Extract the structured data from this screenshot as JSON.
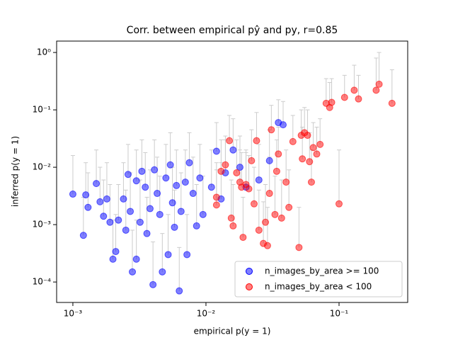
{
  "chart_data": {
    "type": "scatter",
    "title": "Corr. between empirical pŷ and py, r=0.85",
    "x_label": "empirical p(y = 1)",
    "y_label": "inferred p(y = 1)",
    "x_log": true,
    "y_log": true,
    "xlim": [
      0.000755,
      0.328
    ],
    "ylim": [
      4.4e-05,
      1.58
    ],
    "xticks": [
      {
        "value": 0.001,
        "label": "10⁻³"
      },
      {
        "value": 0.01,
        "label": "10⁻²"
      },
      {
        "value": 0.1,
        "label": "10⁻¹"
      }
    ],
    "yticks": [
      {
        "value": 0.0001,
        "label": "10⁻⁴"
      },
      {
        "value": 0.001,
        "label": "10⁻³"
      },
      {
        "value": 0.01,
        "label": "10⁻²"
      },
      {
        "value": 0.1,
        "label": "10⁻¹"
      },
      {
        "value": 1,
        "label": "10⁰"
      }
    ],
    "legend": "lower right",
    "error_color": "#cccccc",
    "series": [
      {
        "name": "n_images_by_area >= 100",
        "color": "#0000ff",
        "x": [
          0.001,
          0.0012,
          0.00125,
          0.0013,
          0.0015,
          0.0016,
          0.0017,
          0.0018,
          0.0019,
          0.002,
          0.0021,
          0.0022,
          0.0024,
          0.0025,
          0.0026,
          0.0027,
          0.0028,
          0.003,
          0.003,
          0.0032,
          0.0033,
          0.0035,
          0.0036,
          0.0038,
          0.004,
          0.0041,
          0.0043,
          0.0045,
          0.0047,
          0.005,
          0.0052,
          0.0054,
          0.0056,
          0.0058,
          0.006,
          0.0063,
          0.0065,
          0.007,
          0.0072,
          0.0075,
          0.008,
          0.0085,
          0.009,
          0.0095,
          0.011,
          0.012,
          0.013,
          0.014,
          0.016,
          0.018,
          0.02,
          0.025,
          0.03,
          0.035,
          0.038
        ],
        "values": [
          0.0034,
          0.00065,
          0.0033,
          0.002,
          0.0052,
          0.0025,
          0.0014,
          0.0028,
          0.0011,
          0.00025,
          0.00034,
          0.0012,
          0.0028,
          0.0008,
          0.0075,
          0.0017,
          0.00015,
          0.0058,
          0.00025,
          0.0011,
          0.0085,
          0.0045,
          0.0007,
          0.0019,
          9e-05,
          0.009,
          0.0035,
          0.0015,
          0.00015,
          0.0065,
          0.0003,
          0.011,
          0.0024,
          0.0009,
          0.0048,
          7e-05,
          0.0017,
          0.0055,
          0.0003,
          0.012,
          0.0035,
          0.00095,
          0.0065,
          0.0015,
          0.0045,
          0.019,
          0.0028,
          0.008,
          0.02,
          0.01,
          0.0045,
          0.006,
          0.013,
          0.06,
          0.055
        ],
        "upper": [
          0.016,
          0.003,
          0.012,
          0.008,
          0.02,
          0.01,
          0.006,
          0.012,
          0.005,
          0.0012,
          0.0015,
          0.005,
          0.012,
          0.004,
          0.025,
          0.008,
          0.0008,
          0.02,
          0.0012,
          0.006,
          0.03,
          0.018,
          0.003,
          0.009,
          0.0005,
          0.03,
          0.015,
          0.007,
          0.0007,
          0.025,
          0.0015,
          0.04,
          0.01,
          0.004,
          0.02,
          0.0004,
          0.008,
          0.02,
          0.0015,
          0.04,
          0.015,
          0.005,
          0.025,
          0.007,
          0.02,
          0.06,
          0.012,
          0.03,
          0.07,
          0.035,
          0.018,
          0.025,
          0.045,
          0.15,
          0.14
        ]
      },
      {
        "name": "n_images_by_area < 100",
        "color": "#ff0000",
        "x": [
          0.012,
          0.012,
          0.013,
          0.014,
          0.015,
          0.0155,
          0.016,
          0.017,
          0.018,
          0.0185,
          0.019,
          0.02,
          0.021,
          0.022,
          0.023,
          0.024,
          0.025,
          0.027,
          0.028,
          0.029,
          0.03,
          0.031,
          0.033,
          0.034,
          0.035,
          0.037,
          0.04,
          0.042,
          0.045,
          0.05,
          0.052,
          0.053,
          0.055,
          0.058,
          0.06,
          0.062,
          0.064,
          0.068,
          0.072,
          0.08,
          0.085,
          0.088,
          0.1,
          0.11,
          0.13,
          0.14,
          0.19,
          0.2,
          0.25
        ],
        "values": [
          0.003,
          0.0022,
          0.0085,
          0.011,
          0.029,
          0.0013,
          0.00095,
          0.008,
          0.0055,
          0.0045,
          0.0006,
          0.005,
          0.0042,
          0.013,
          0.0023,
          0.029,
          0.0008,
          0.00047,
          0.0011,
          0.00043,
          0.0035,
          0.045,
          0.0015,
          0.0085,
          0.017,
          0.0013,
          0.0055,
          0.002,
          0.028,
          0.0004,
          0.036,
          0.014,
          0.04,
          0.036,
          0.0125,
          0.0055,
          0.022,
          0.017,
          0.025,
          0.13,
          0.11,
          0.135,
          0.0023,
          0.165,
          0.22,
          0.155,
          0.22,
          0.28,
          0.13
        ],
        "upper": [
          0.012,
          0.009,
          0.03,
          0.035,
          0.08,
          0.006,
          0.005,
          0.03,
          0.02,
          0.018,
          0.003,
          0.02,
          0.016,
          0.045,
          0.01,
          0.09,
          0.004,
          0.0025,
          0.005,
          0.002,
          0.015,
          0.12,
          0.007,
          0.03,
          0.05,
          0.006,
          0.02,
          0.009,
          0.08,
          0.002,
          0.1,
          0.05,
          0.11,
          0.1,
          0.04,
          0.02,
          0.06,
          0.05,
          0.07,
          0.35,
          0.3,
          0.35,
          0.02,
          0.4,
          0.6,
          0.4,
          0.8,
          1.0,
          0.5
        ]
      }
    ]
  }
}
